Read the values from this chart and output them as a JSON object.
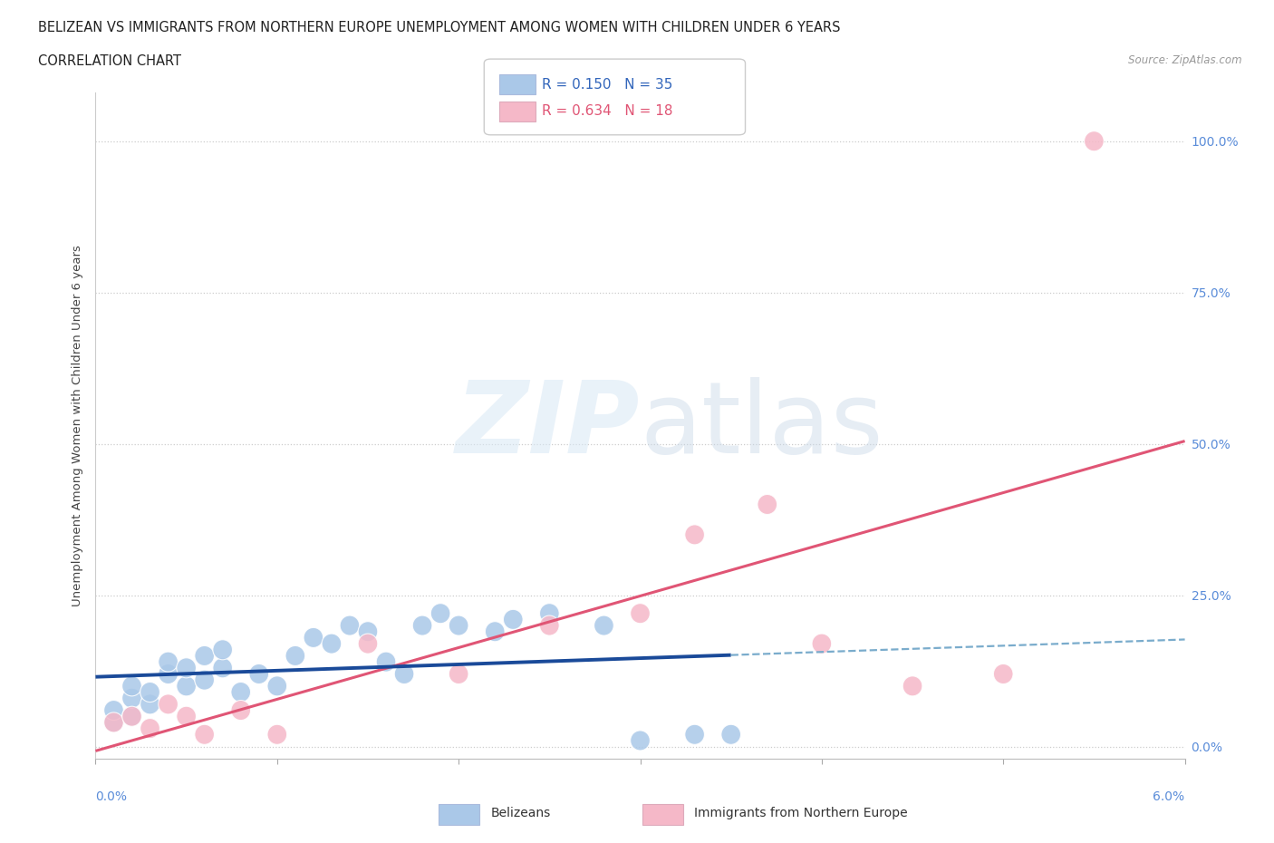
{
  "title_line1": "BELIZEAN VS IMMIGRANTS FROM NORTHERN EUROPE UNEMPLOYMENT AMONG WOMEN WITH CHILDREN UNDER 6 YEARS",
  "title_line2": "CORRELATION CHART",
  "source": "Source: ZipAtlas.com",
  "ylabel": "Unemployment Among Women with Children Under 6 years",
  "ytick_labels": [
    "0.0%",
    "25.0%",
    "50.0%",
    "75.0%",
    "100.0%"
  ],
  "ytick_values": [
    0.0,
    0.25,
    0.5,
    0.75,
    1.0
  ],
  "xmin": 0.0,
  "xmax": 0.06,
  "ymin": -0.02,
  "ymax": 1.08,
  "watermark_zip": "ZIP",
  "watermark_atlas": "atlas",
  "blue_R": 0.15,
  "blue_N": 35,
  "pink_R": 0.634,
  "pink_N": 18,
  "blue_color": "#aac8e8",
  "pink_color": "#f5b8c8",
  "blue_line_color": "#1a4a99",
  "pink_line_color": "#e05575",
  "blue_dashed_color": "#7aaccc",
  "legend_blue_label": "Belizeans",
  "legend_pink_label": "Immigrants from Northern Europe",
  "blue_x": [
    0.001,
    0.001,
    0.002,
    0.002,
    0.002,
    0.003,
    0.003,
    0.004,
    0.004,
    0.005,
    0.005,
    0.006,
    0.006,
    0.007,
    0.007,
    0.008,
    0.009,
    0.01,
    0.011,
    0.012,
    0.013,
    0.014,
    0.015,
    0.016,
    0.017,
    0.018,
    0.019,
    0.02,
    0.022,
    0.023,
    0.025,
    0.028,
    0.03,
    0.033,
    0.035
  ],
  "blue_y": [
    0.04,
    0.06,
    0.05,
    0.08,
    0.1,
    0.07,
    0.09,
    0.12,
    0.14,
    0.1,
    0.13,
    0.11,
    0.15,
    0.13,
    0.16,
    0.09,
    0.12,
    0.1,
    0.15,
    0.18,
    0.17,
    0.2,
    0.19,
    0.14,
    0.12,
    0.2,
    0.22,
    0.2,
    0.19,
    0.21,
    0.22,
    0.2,
    0.01,
    0.02,
    0.02
  ],
  "pink_x": [
    0.001,
    0.002,
    0.003,
    0.004,
    0.005,
    0.006,
    0.008,
    0.01,
    0.015,
    0.02,
    0.025,
    0.03,
    0.033,
    0.037,
    0.04,
    0.045,
    0.05,
    0.055
  ],
  "pink_y": [
    0.04,
    0.05,
    0.03,
    0.07,
    0.05,
    0.02,
    0.06,
    0.02,
    0.17,
    0.12,
    0.2,
    0.22,
    0.35,
    0.4,
    0.17,
    0.1,
    0.12,
    1.0
  ]
}
